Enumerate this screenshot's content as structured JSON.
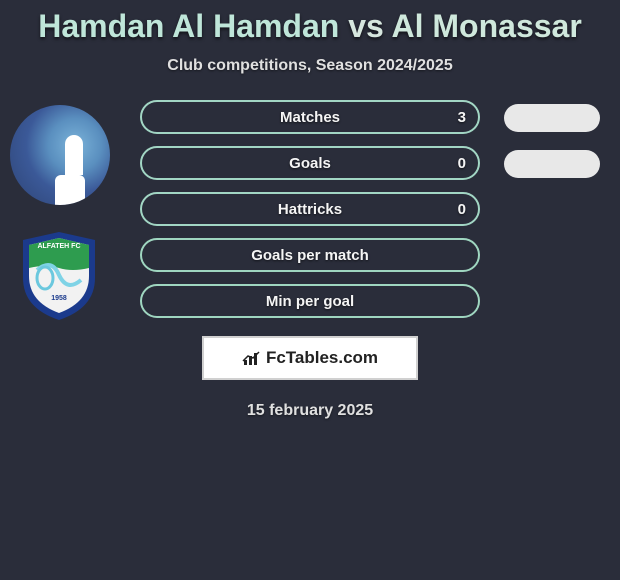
{
  "background_color": "#2a2d3a",
  "title": {
    "player1": "Hamdan Al Hamdan",
    "vs": "vs",
    "player2": "Al Monassar",
    "color_p1": "#bfe6d9",
    "color_vs": "#d6e6de",
    "color_p2": "#cfe8dc"
  },
  "subtitle": "Club competitions, Season 2024/2025",
  "avatars": {
    "player1_type": "facebook-style-circle",
    "player2_type": "club-crest-shield",
    "shield_outer_color": "#1b3a8c",
    "shield_inner_top": "#2e9c4f",
    "shield_inner_bottom": "#f2f2f2",
    "shield_wave_color": "#7fd3e6",
    "shield_text": "ALFATEH FC",
    "shield_year": "1958"
  },
  "stats": [
    {
      "label": "Matches",
      "value_left": "3",
      "border_color": "#a2d6c4",
      "has_right_pill": true,
      "pill_color": "#e8e8e8"
    },
    {
      "label": "Goals",
      "value_left": "0",
      "border_color": "#a2d6c4",
      "has_right_pill": true,
      "pill_color": "#e8e8e8"
    },
    {
      "label": "Hattricks",
      "value_left": "0",
      "border_color": "#a2d6c4",
      "has_right_pill": false
    },
    {
      "label": "Goals per match",
      "value_left": "",
      "border_color": "#9fd6c0",
      "has_right_pill": false
    },
    {
      "label": "Min per goal",
      "value_left": "",
      "border_color": "#9fd6c0",
      "has_right_pill": false
    }
  ],
  "branding": {
    "text": "FcTables.com",
    "box_bg": "#ffffff",
    "box_border": "#d0d0d0",
    "text_color": "#222222"
  },
  "date": "15 february 2025"
}
